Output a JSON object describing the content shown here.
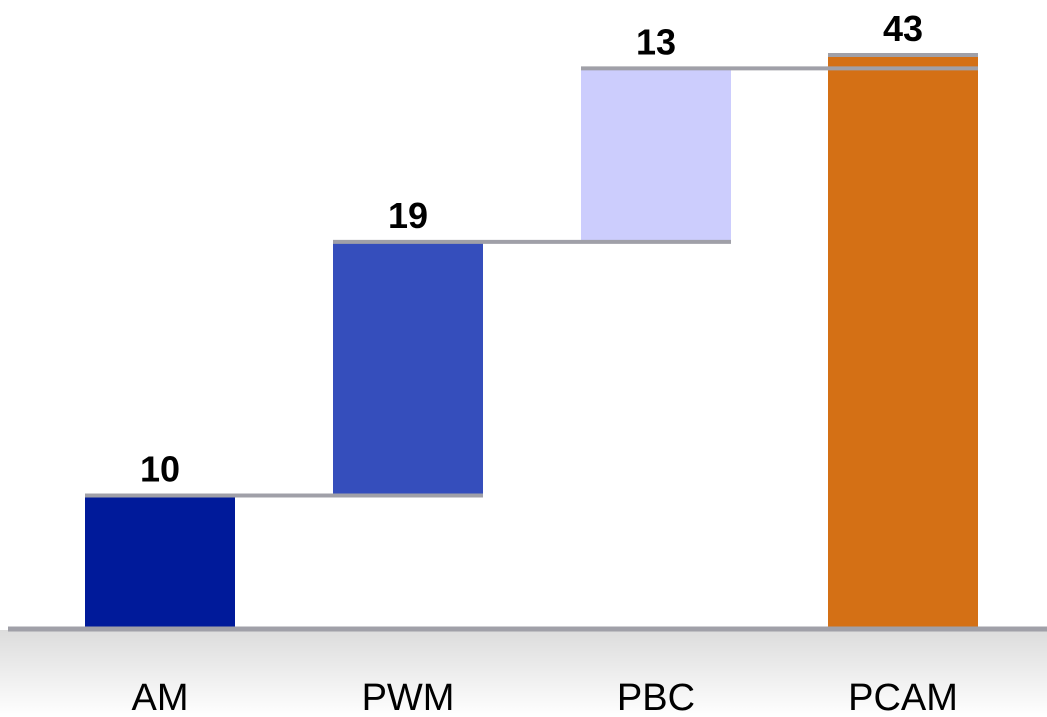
{
  "chart_data": {
    "type": "bar",
    "variant": "waterfall",
    "title": "",
    "xlabel": "",
    "ylabel": "",
    "categories": [
      "AM",
      "PWM",
      "PBC",
      "PCAM"
    ],
    "values": [
      10,
      19,
      13,
      43
    ],
    "data_labels": [
      "10",
      "19",
      "13",
      "43"
    ],
    "bar_kinds": [
      "increment",
      "increment",
      "increment",
      "total"
    ],
    "colors": [
      "#001a9a",
      "#354ebc",
      "#cccdfd",
      "#d47015"
    ],
    "connector_color": "#a0a0a8",
    "axis_color": "#a0a0a8",
    "ylim": [
      0,
      43
    ],
    "grid": false,
    "legend": "none"
  }
}
